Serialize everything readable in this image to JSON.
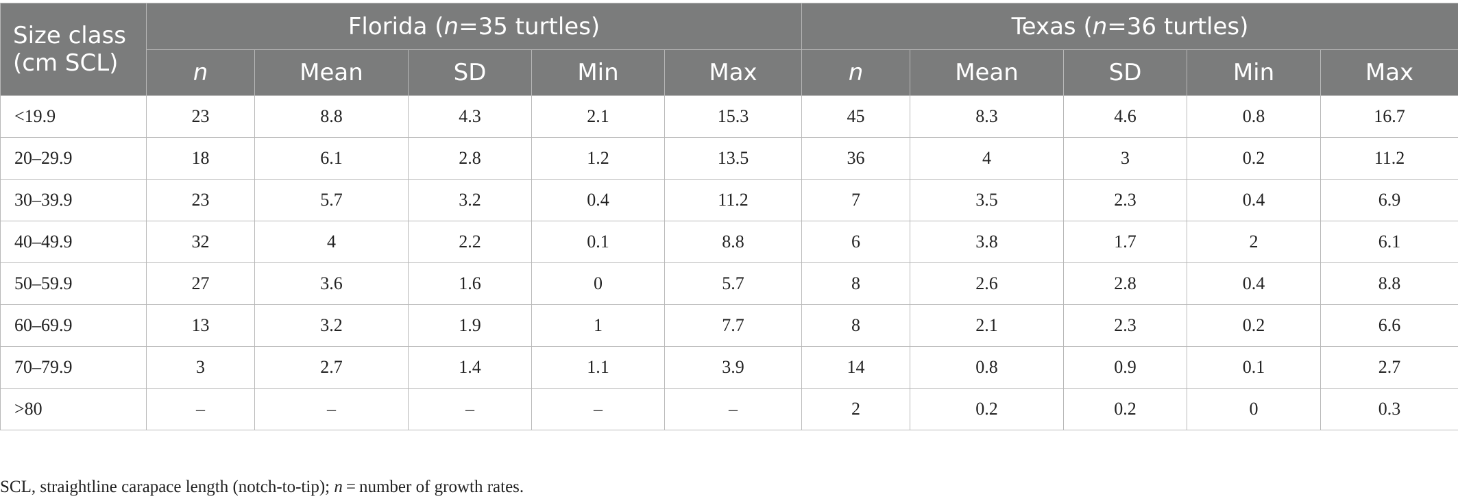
{
  "header": {
    "size_class": "Size class",
    "size_class_unit": "(cm SCL)",
    "groups": [
      {
        "prefix": "Florida (",
        "n_letter": "n",
        "suffix": "=35 turtles)"
      },
      {
        "prefix": "Texas (",
        "n_letter": "n",
        "suffix": "=36 turtles)"
      }
    ],
    "sub_columns": [
      "n",
      "Mean",
      "SD",
      "Min",
      "Max",
      "n",
      "Mean",
      "SD",
      "Min",
      "Max"
    ]
  },
  "rows": [
    {
      "label": "<19.9",
      "cells": [
        "23",
        "8.8",
        "4.3",
        "2.1",
        "15.3",
        "45",
        "8.3",
        "4.6",
        "0.8",
        "16.7"
      ]
    },
    {
      "label": "20–29.9",
      "cells": [
        "18",
        "6.1",
        "2.8",
        "1.2",
        "13.5",
        "36",
        "4",
        "3",
        "0.2",
        "11.2"
      ]
    },
    {
      "label": "30–39.9",
      "cells": [
        "23",
        "5.7",
        "3.2",
        "0.4",
        "11.2",
        "7",
        "3.5",
        "2.3",
        "0.4",
        "6.9"
      ]
    },
    {
      "label": "40–49.9",
      "cells": [
        "32",
        "4",
        "2.2",
        "0.1",
        "8.8",
        "6",
        "3.8",
        "1.7",
        "2",
        "6.1"
      ]
    },
    {
      "label": "50–59.9",
      "cells": [
        "27",
        "3.6",
        "1.6",
        "0",
        "5.7",
        "8",
        "2.6",
        "2.8",
        "0.4",
        "8.8"
      ]
    },
    {
      "label": "60–69.9",
      "cells": [
        "13",
        "3.2",
        "1.9",
        "1",
        "7.7",
        "8",
        "2.1",
        "2.3",
        "0.2",
        "6.6"
      ]
    },
    {
      "label": "70–79.9",
      "cells": [
        "3",
        "2.7",
        "1.4",
        "1.1",
        "3.9",
        "14",
        "0.8",
        "0.9",
        "0.1",
        "2.7"
      ]
    },
    {
      "label": ">80",
      "cells": [
        "–",
        "–",
        "–",
        "–",
        "–",
        "2",
        "0.2",
        "0.2",
        "0",
        "0.3"
      ]
    }
  ],
  "footnote": {
    "part1": "SCL, straightline carapace length (notch-to-tip); ",
    "n_letter": "n",
    "part2": " = number of growth rates."
  }
}
